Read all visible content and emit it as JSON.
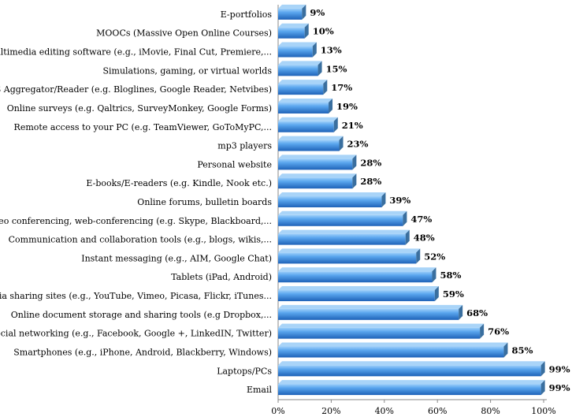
{
  "chart_data": {
    "type": "bar",
    "orientation": "horizontal",
    "categories": [
      "E-portfolios",
      "MOOCs (Massive Open Online Courses)",
      "Multimedia editing software (e.g., iMovie, Final Cut, Premiere,...",
      "Simulations, gaming, or virtual worlds",
      "RSS Aggregator/Reader (e.g. Bloglines, Google Reader, Netvibes)",
      "Online surveys (e.g. Qaltrics, SurveyMonkey, Google Forms)",
      "Remote access to your PC (e.g. TeamViewer, GoToMyPC,...",
      "mp3 players",
      "Personal website",
      "E-books/E-readers  (e.g. Kindle, Nook etc.)",
      "Online forums, bulletin boards",
      "Video conferencing, web-conferencing  (e.g. Skype, Blackboard,...",
      "Communication and collaboration tools (e.g., blogs, wikis,...",
      "Instant messaging (e.g., AIM, Google Chat)",
      "Tablets  (iPad, Android)",
      "Media sharing sites (e.g., YouTube, Vimeo, Picasa, Flickr, iTunes...",
      "Online document storage and sharing tools (e.g Dropbox,...",
      "Social networking (e.g., Facebook, Google +, LinkedIN, Twitter)",
      "Smartphones (e.g., iPhone, Android, Blackberry, Windows)",
      "Laptops/PCs",
      "Email"
    ],
    "values": [
      9,
      10,
      13,
      15,
      17,
      19,
      21,
      23,
      28,
      28,
      39,
      47,
      48,
      52,
      58,
      59,
      68,
      76,
      85,
      99,
      99
    ],
    "value_labels": [
      "9%",
      "10%",
      "13%",
      "15%",
      "17%",
      "19%",
      "21%",
      "23%",
      "28%",
      "28%",
      "39%",
      "47%",
      "48%",
      "52%",
      "58%",
      "59%",
      "68%",
      "76%",
      "85%",
      "99%",
      "99%"
    ],
    "xticks": [
      "0%",
      "20%",
      "40%",
      "60%",
      "80%",
      "100%"
    ],
    "xlim": [
      0,
      100
    ],
    "grid": false,
    "colors": {
      "bar": "#4a90e2",
      "bar_light": "#8cc4f6",
      "bar_dark": "#1f5fb3",
      "bar_side": "#3a6f9f"
    }
  }
}
